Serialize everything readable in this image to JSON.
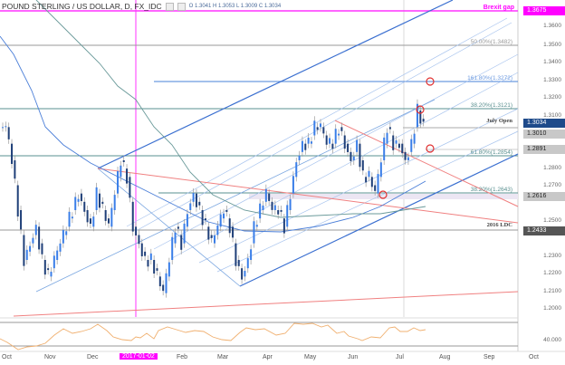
{
  "header": {
    "symbol": "POUND STERLING / US DOLLAR, D, FX_IDC",
    "ohlc": "O 1.3041 H 1.3053 L 1.3009 C 1.3034"
  },
  "chart_data": {
    "type": "candlestick",
    "title": "POUND STERLING / US DOLLAR, D, FX_IDC",
    "ohlc_last": {
      "open": 1.3041,
      "high": 1.3053,
      "low": 1.3009,
      "close": 1.3034
    },
    "x_ticks": [
      "Oct",
      "Nov",
      "Dec",
      "2017-01-02",
      "Feb",
      "Mar",
      "Apr",
      "May",
      "Jun",
      "Jul",
      "Aug",
      "Sep",
      "Oct"
    ],
    "y_ticks": [
      "1.3600",
      "1.3500",
      "1.3400",
      "1.3300",
      "1.3200",
      "1.3100",
      "1.3000",
      "1.2800",
      "1.2700",
      "1.2500",
      "1.2400",
      "1.2300",
      "1.2200",
      "1.2100",
      "1.2000"
    ],
    "ylim": [
      1.19,
      1.37
    ],
    "price_tags": [
      {
        "label": "1.3675",
        "style": "magenta"
      },
      {
        "label": "1.3034",
        "style": "blue"
      },
      {
        "label": "1.3010",
        "style": "gray"
      },
      {
        "label": "1.2891",
        "style": "gray"
      },
      {
        "label": "1.2616",
        "style": "gray"
      },
      {
        "label": "1.2433",
        "style": "dark"
      }
    ],
    "levels": [
      {
        "label": "Brexit gap",
        "value": 1.3675,
        "color": "#ff00ff"
      },
      {
        "label": "50.00%(1.3482)",
        "value": 1.3482,
        "color": "#999999"
      },
      {
        "label": "161.80%(1.3272)",
        "value": 1.3272,
        "color": "#5b8fd6"
      },
      {
        "label": "38.20%(1.3121)",
        "value": 1.3121,
        "color": "#5a9090"
      },
      {
        "label": "July Open",
        "value": 1.3034,
        "color": "#555555"
      },
      {
        "label": "61.80%(1.2854)",
        "value": 1.2854,
        "color": "#5a9090"
      },
      {
        "label": "38.20%(1.2643)",
        "value": 1.2643,
        "color": "#5a9090"
      },
      {
        "label": "2016 LDC",
        "value": 1.2433,
        "color": "#555555"
      }
    ],
    "rsi": {
      "label": "40.000",
      "series_color": "#f0a860"
    },
    "candles_approx_close": [
      1.3,
      1.28,
      1.25,
      1.22,
      1.23,
      1.24,
      1.22,
      1.21,
      1.22,
      1.23,
      1.24,
      1.25,
      1.26,
      1.25,
      1.24,
      1.26,
      1.25,
      1.24,
      1.26,
      1.28,
      1.27,
      1.24,
      1.23,
      1.22,
      1.22,
      1.21,
      1.2,
      1.22,
      1.24,
      1.23,
      1.25,
      1.26,
      1.25,
      1.24,
      1.23,
      1.24,
      1.25,
      1.24,
      1.22,
      1.21,
      1.22,
      1.24,
      1.25,
      1.26,
      1.25,
      1.25,
      1.24,
      1.26,
      1.28,
      1.29,
      1.29,
      1.3,
      1.3,
      1.29,
      1.29,
      1.3,
      1.29,
      1.28,
      1.29,
      1.27,
      1.27,
      1.26,
      1.28,
      1.3,
      1.29,
      1.29,
      1.28,
      1.29,
      1.31,
      1.3
    ]
  }
}
